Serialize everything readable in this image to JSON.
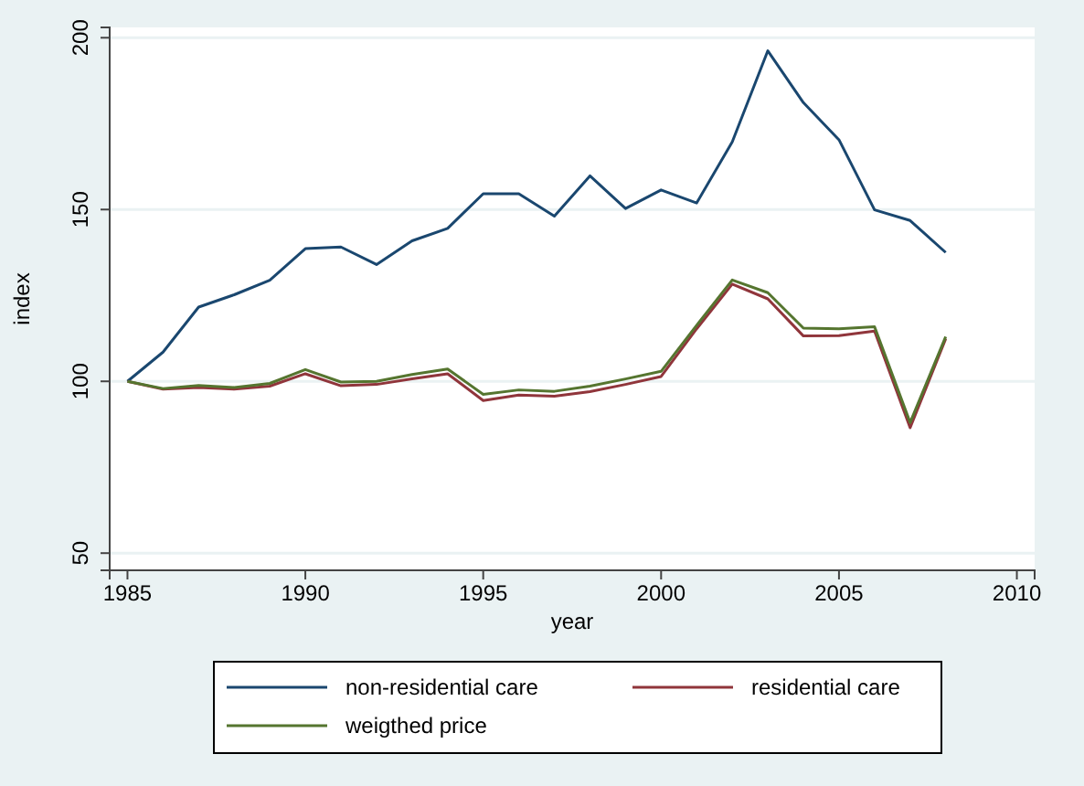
{
  "chart_data": {
    "type": "line",
    "xlabel": "year",
    "ylabel": "index",
    "x": [
      1985,
      1986,
      1987,
      1988,
      1989,
      1990,
      1991,
      1992,
      1993,
      1994,
      1995,
      1996,
      1997,
      1998,
      1999,
      2000,
      2001,
      2002,
      2003,
      2004,
      2005,
      2006,
      2007,
      2008
    ],
    "series": [
      {
        "name": "non-residential care",
        "color": "#1a476f",
        "values": [
          100,
          108.5,
          121.6,
          125.2,
          129.4,
          138.6,
          139.1,
          134,
          140.9,
          144.5,
          154.6,
          154.6,
          148.1,
          159.8,
          150.3,
          155.7,
          151.9,
          169.7,
          196.2,
          181.1,
          170.3,
          149.9,
          146.8,
          137.5
        ]
      },
      {
        "name": "residential care",
        "color": "#90353b",
        "values": [
          100,
          97.7,
          98.2,
          97.7,
          98.6,
          102.2,
          98.7,
          99.1,
          100.7,
          102.2,
          94.4,
          96,
          95.7,
          97,
          99.1,
          101.4,
          115.3,
          128.3,
          124,
          113.2,
          113.3,
          114.6,
          86.5,
          112.4
        ]
      },
      {
        "name": "weigthed price",
        "color": "#55752f",
        "values": [
          100,
          97.9,
          98.8,
          98.2,
          99.4,
          103.4,
          99.8,
          100,
          102,
          103.6,
          96.2,
          97.5,
          97.1,
          98.6,
          100.7,
          102.9,
          116.3,
          129.5,
          125.8,
          115.5,
          115.3,
          115.9,
          88,
          113
        ]
      }
    ],
    "xlim": [
      1984.5,
      2010.5
    ],
    "xticks": [
      1985,
      1990,
      1995,
      2000,
      2005,
      2010
    ],
    "ylim": [
      45,
      203
    ],
    "yticks": [
      50,
      100,
      150,
      200
    ],
    "grid": "y",
    "legend": "bottom",
    "line_style": "solid",
    "marker": "none"
  }
}
